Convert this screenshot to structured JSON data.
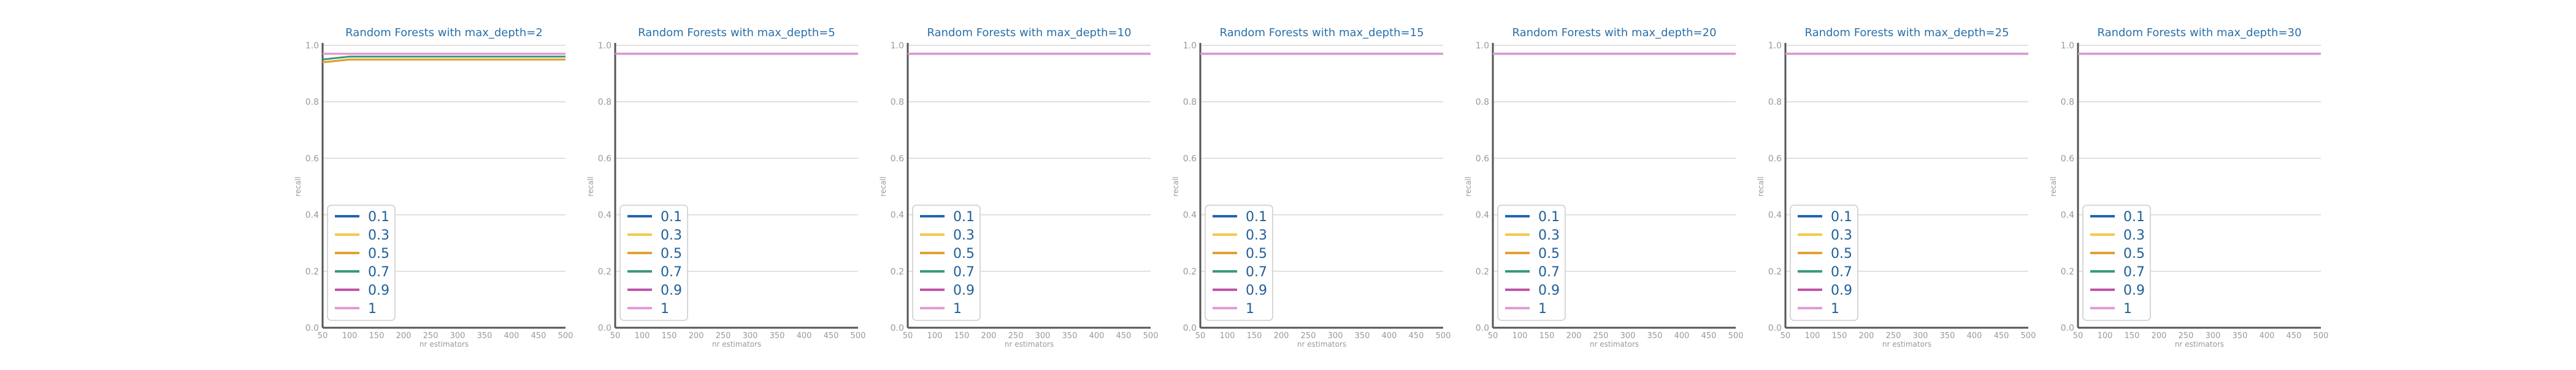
{
  "colors": {
    "title": "#2a6fa8",
    "axis": "#555555",
    "grid": "#d6d6d6",
    "tick": "#999999",
    "legend_text": "#1f5f99",
    "legend_border": "#cccccc"
  },
  "legend_entries": [
    "0.1",
    "0.3",
    "0.5",
    "0.7",
    "0.9",
    "1"
  ],
  "series_colors": [
    "#1f66b0",
    "#f2c94c",
    "#e0a030",
    "#3a9a74",
    "#c055a8",
    "#e29ad8"
  ],
  "chart_data": [
    {
      "type": "line",
      "title": "Random Forests with max_depth=2",
      "xlabel": "nr estimators",
      "ylabel": "recall",
      "x": [
        50,
        100,
        150,
        200,
        250,
        300,
        350,
        400,
        450,
        500
      ],
      "xticks": [
        50,
        100,
        150,
        200,
        250,
        300,
        350,
        400,
        450,
        500
      ],
      "ylim": [
        0,
        1
      ],
      "yticks": [
        0.0,
        0.2,
        0.4,
        0.6,
        0.8,
        1.0
      ],
      "grid": true,
      "legend_position": "lower-left",
      "series": [
        {
          "name": "0.1",
          "values": [
            0.94,
            0.95,
            0.95,
            0.95,
            0.95,
            0.95,
            0.95,
            0.95,
            0.95,
            0.95
          ]
        },
        {
          "name": "0.3",
          "values": [
            0.94,
            0.95,
            0.95,
            0.95,
            0.95,
            0.95,
            0.95,
            0.95,
            0.95,
            0.95
          ]
        },
        {
          "name": "0.5",
          "values": [
            0.94,
            0.95,
            0.95,
            0.95,
            0.95,
            0.95,
            0.95,
            0.95,
            0.95,
            0.95
          ]
        },
        {
          "name": "0.7",
          "values": [
            0.95,
            0.96,
            0.96,
            0.96,
            0.96,
            0.96,
            0.96,
            0.96,
            0.96,
            0.96
          ]
        },
        {
          "name": "0.9",
          "values": [
            0.97,
            0.97,
            0.97,
            0.97,
            0.97,
            0.97,
            0.97,
            0.97,
            0.97,
            0.97
          ]
        },
        {
          "name": "1",
          "values": [
            0.97,
            0.97,
            0.97,
            0.97,
            0.97,
            0.97,
            0.97,
            0.97,
            0.97,
            0.97
          ]
        }
      ]
    },
    {
      "type": "line",
      "title": "Random Forests with max_depth=5",
      "xlabel": "nr estimators",
      "ylabel": "recall",
      "x": [
        50,
        100,
        150,
        200,
        250,
        300,
        350,
        400,
        450,
        500
      ],
      "xticks": [
        50,
        100,
        150,
        200,
        250,
        300,
        350,
        400,
        450,
        500
      ],
      "ylim": [
        0,
        1
      ],
      "yticks": [
        0.0,
        0.2,
        0.4,
        0.6,
        0.8,
        1.0
      ],
      "grid": true,
      "legend_position": "lower-left",
      "series": [
        {
          "name": "0.1",
          "values": [
            0.97,
            0.97,
            0.97,
            0.97,
            0.97,
            0.97,
            0.97,
            0.97,
            0.97,
            0.97
          ]
        },
        {
          "name": "0.3",
          "values": [
            0.97,
            0.97,
            0.97,
            0.97,
            0.97,
            0.97,
            0.97,
            0.97,
            0.97,
            0.97
          ]
        },
        {
          "name": "0.5",
          "values": [
            0.97,
            0.97,
            0.97,
            0.97,
            0.97,
            0.97,
            0.97,
            0.97,
            0.97,
            0.97
          ]
        },
        {
          "name": "0.7",
          "values": [
            0.97,
            0.97,
            0.97,
            0.97,
            0.97,
            0.97,
            0.97,
            0.97,
            0.97,
            0.97
          ]
        },
        {
          "name": "0.9",
          "values": [
            0.97,
            0.97,
            0.97,
            0.97,
            0.97,
            0.97,
            0.97,
            0.97,
            0.97,
            0.97
          ]
        },
        {
          "name": "1",
          "values": [
            0.97,
            0.97,
            0.97,
            0.97,
            0.97,
            0.97,
            0.97,
            0.97,
            0.97,
            0.97
          ]
        }
      ]
    },
    {
      "type": "line",
      "title": "Random Forests with max_depth=10",
      "xlabel": "nr estimators",
      "ylabel": "recall",
      "x": [
        50,
        100,
        150,
        200,
        250,
        300,
        350,
        400,
        450,
        500
      ],
      "xticks": [
        50,
        100,
        150,
        200,
        250,
        300,
        350,
        400,
        450,
        500
      ],
      "ylim": [
        0,
        1
      ],
      "yticks": [
        0.0,
        0.2,
        0.4,
        0.6,
        0.8,
        1.0
      ],
      "grid": true,
      "legend_position": "lower-left",
      "series": [
        {
          "name": "0.1",
          "values": [
            0.97,
            0.97,
            0.97,
            0.97,
            0.97,
            0.97,
            0.97,
            0.97,
            0.97,
            0.97
          ]
        },
        {
          "name": "0.3",
          "values": [
            0.97,
            0.97,
            0.97,
            0.97,
            0.97,
            0.97,
            0.97,
            0.97,
            0.97,
            0.97
          ]
        },
        {
          "name": "0.5",
          "values": [
            0.97,
            0.97,
            0.97,
            0.97,
            0.97,
            0.97,
            0.97,
            0.97,
            0.97,
            0.97
          ]
        },
        {
          "name": "0.7",
          "values": [
            0.97,
            0.97,
            0.97,
            0.97,
            0.97,
            0.97,
            0.97,
            0.97,
            0.97,
            0.97
          ]
        },
        {
          "name": "0.9",
          "values": [
            0.97,
            0.97,
            0.97,
            0.97,
            0.97,
            0.97,
            0.97,
            0.97,
            0.97,
            0.97
          ]
        },
        {
          "name": "1",
          "values": [
            0.97,
            0.97,
            0.97,
            0.97,
            0.97,
            0.97,
            0.97,
            0.97,
            0.97,
            0.97
          ]
        }
      ]
    },
    {
      "type": "line",
      "title": "Random Forests with max_depth=15",
      "xlabel": "nr estimators",
      "ylabel": "recall",
      "x": [
        50,
        100,
        150,
        200,
        250,
        300,
        350,
        400,
        450,
        500
      ],
      "xticks": [
        50,
        100,
        150,
        200,
        250,
        300,
        350,
        400,
        450,
        500
      ],
      "ylim": [
        0,
        1
      ],
      "yticks": [
        0.0,
        0.2,
        0.4,
        0.6,
        0.8,
        1.0
      ],
      "grid": true,
      "legend_position": "lower-left",
      "series": [
        {
          "name": "0.1",
          "values": [
            0.97,
            0.97,
            0.97,
            0.97,
            0.97,
            0.97,
            0.97,
            0.97,
            0.97,
            0.97
          ]
        },
        {
          "name": "0.3",
          "values": [
            0.97,
            0.97,
            0.97,
            0.97,
            0.97,
            0.97,
            0.97,
            0.97,
            0.97,
            0.97
          ]
        },
        {
          "name": "0.5",
          "values": [
            0.97,
            0.97,
            0.97,
            0.97,
            0.97,
            0.97,
            0.97,
            0.97,
            0.97,
            0.97
          ]
        },
        {
          "name": "0.7",
          "values": [
            0.97,
            0.97,
            0.97,
            0.97,
            0.97,
            0.97,
            0.97,
            0.97,
            0.97,
            0.97
          ]
        },
        {
          "name": "0.9",
          "values": [
            0.97,
            0.97,
            0.97,
            0.97,
            0.97,
            0.97,
            0.97,
            0.97,
            0.97,
            0.97
          ]
        },
        {
          "name": "1",
          "values": [
            0.97,
            0.97,
            0.97,
            0.97,
            0.97,
            0.97,
            0.97,
            0.97,
            0.97,
            0.97
          ]
        }
      ]
    },
    {
      "type": "line",
      "title": "Random Forests with max_depth=20",
      "xlabel": "nr estimators",
      "ylabel": "recall",
      "x": [
        50,
        100,
        150,
        200,
        250,
        300,
        350,
        400,
        450,
        500
      ],
      "xticks": [
        50,
        100,
        150,
        200,
        250,
        300,
        350,
        400,
        450,
        500
      ],
      "ylim": [
        0,
        1
      ],
      "yticks": [
        0.0,
        0.2,
        0.4,
        0.6,
        0.8,
        1.0
      ],
      "grid": true,
      "legend_position": "lower-left",
      "series": [
        {
          "name": "0.1",
          "values": [
            0.97,
            0.97,
            0.97,
            0.97,
            0.97,
            0.97,
            0.97,
            0.97,
            0.97,
            0.97
          ]
        },
        {
          "name": "0.3",
          "values": [
            0.97,
            0.97,
            0.97,
            0.97,
            0.97,
            0.97,
            0.97,
            0.97,
            0.97,
            0.97
          ]
        },
        {
          "name": "0.5",
          "values": [
            0.97,
            0.97,
            0.97,
            0.97,
            0.97,
            0.97,
            0.97,
            0.97,
            0.97,
            0.97
          ]
        },
        {
          "name": "0.7",
          "values": [
            0.97,
            0.97,
            0.97,
            0.97,
            0.97,
            0.97,
            0.97,
            0.97,
            0.97,
            0.97
          ]
        },
        {
          "name": "0.9",
          "values": [
            0.97,
            0.97,
            0.97,
            0.97,
            0.97,
            0.97,
            0.97,
            0.97,
            0.97,
            0.97
          ]
        },
        {
          "name": "1",
          "values": [
            0.97,
            0.97,
            0.97,
            0.97,
            0.97,
            0.97,
            0.97,
            0.97,
            0.97,
            0.97
          ]
        }
      ]
    },
    {
      "type": "line",
      "title": "Random Forests with max_depth=25",
      "xlabel": "nr estimators",
      "ylabel": "recall",
      "x": [
        50,
        100,
        150,
        200,
        250,
        300,
        350,
        400,
        450,
        500
      ],
      "xticks": [
        50,
        100,
        150,
        200,
        250,
        300,
        350,
        400,
        450,
        500
      ],
      "ylim": [
        0,
        1
      ],
      "yticks": [
        0.0,
        0.2,
        0.4,
        0.6,
        0.8,
        1.0
      ],
      "grid": true,
      "legend_position": "lower-left",
      "series": [
        {
          "name": "0.1",
          "values": [
            0.97,
            0.97,
            0.97,
            0.97,
            0.97,
            0.97,
            0.97,
            0.97,
            0.97,
            0.97
          ]
        },
        {
          "name": "0.3",
          "values": [
            0.97,
            0.97,
            0.97,
            0.97,
            0.97,
            0.97,
            0.97,
            0.97,
            0.97,
            0.97
          ]
        },
        {
          "name": "0.5",
          "values": [
            0.97,
            0.97,
            0.97,
            0.97,
            0.97,
            0.97,
            0.97,
            0.97,
            0.97,
            0.97
          ]
        },
        {
          "name": "0.7",
          "values": [
            0.97,
            0.97,
            0.97,
            0.97,
            0.97,
            0.97,
            0.97,
            0.97,
            0.97,
            0.97
          ]
        },
        {
          "name": "0.9",
          "values": [
            0.97,
            0.97,
            0.97,
            0.97,
            0.97,
            0.97,
            0.97,
            0.97,
            0.97,
            0.97
          ]
        },
        {
          "name": "1",
          "values": [
            0.97,
            0.97,
            0.97,
            0.97,
            0.97,
            0.97,
            0.97,
            0.97,
            0.97,
            0.97
          ]
        }
      ]
    },
    {
      "type": "line",
      "title": "Random Forests with max_depth=30",
      "xlabel": "nr estimators",
      "ylabel": "recall",
      "x": [
        50,
        100,
        150,
        200,
        250,
        300,
        350,
        400,
        450,
        500
      ],
      "xticks": [
        50,
        100,
        150,
        200,
        250,
        300,
        350,
        400,
        450,
        500
      ],
      "ylim": [
        0,
        1
      ],
      "yticks": [
        0.0,
        0.2,
        0.4,
        0.6,
        0.8,
        1.0
      ],
      "grid": true,
      "legend_position": "lower-left",
      "series": [
        {
          "name": "0.1",
          "values": [
            0.97,
            0.97,
            0.97,
            0.97,
            0.97,
            0.97,
            0.97,
            0.97,
            0.97,
            0.97
          ]
        },
        {
          "name": "0.3",
          "values": [
            0.97,
            0.97,
            0.97,
            0.97,
            0.97,
            0.97,
            0.97,
            0.97,
            0.97,
            0.97
          ]
        },
        {
          "name": "0.5",
          "values": [
            0.97,
            0.97,
            0.97,
            0.97,
            0.97,
            0.97,
            0.97,
            0.97,
            0.97,
            0.97
          ]
        },
        {
          "name": "0.7",
          "values": [
            0.97,
            0.97,
            0.97,
            0.97,
            0.97,
            0.97,
            0.97,
            0.97,
            0.97,
            0.97
          ]
        },
        {
          "name": "0.9",
          "values": [
            0.97,
            0.97,
            0.97,
            0.97,
            0.97,
            0.97,
            0.97,
            0.97,
            0.97,
            0.97
          ]
        },
        {
          "name": "1",
          "values": [
            0.97,
            0.97,
            0.97,
            0.97,
            0.97,
            0.97,
            0.97,
            0.97,
            0.97,
            0.97
          ]
        }
      ]
    }
  ]
}
